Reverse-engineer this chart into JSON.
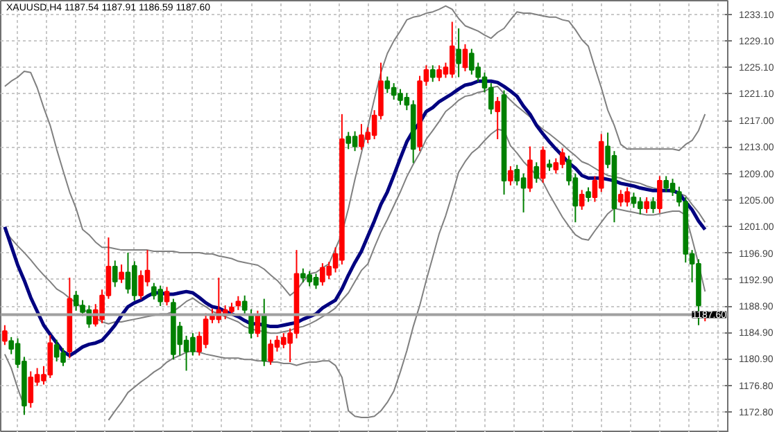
{
  "chart_data": {
    "type": "candlestick",
    "title": "XAUUSD,H4  1187.54 1187.91 1186.59 1187.60",
    "categories": [
      null,
      null,
      null,
      null,
      null,
      null,
      null,
      null,
      null,
      null,
      null,
      null,
      null,
      null,
      null,
      null,
      null,
      null,
      null,
      null,
      null,
      null,
      null,
      null,
      null,
      null,
      null,
      null,
      null,
      null,
      null,
      null,
      null,
      null,
      null,
      null,
      null,
      null,
      null,
      null,
      null,
      null,
      null,
      null,
      null,
      null,
      null,
      null,
      null,
      null,
      null,
      null,
      null,
      null,
      null,
      null,
      null,
      null,
      null,
      null,
      null,
      null,
      null,
      null,
      null,
      null,
      null,
      null,
      null,
      null,
      null,
      null,
      null,
      null,
      null,
      null,
      null,
      null,
      null,
      null,
      null,
      null,
      null,
      null,
      null,
      null,
      null,
      null,
      null,
      null,
      null,
      null,
      null,
      null,
      null,
      null,
      null,
      null,
      null,
      null,
      null,
      null,
      null,
      null,
      null,
      null,
      null,
      null,
      null
    ],
    "ohlc": [
      [
        1183.6,
        1186.0,
        1183.0,
        1185.1
      ],
      [
        1183.6,
        1184.2,
        1181.6,
        1182.4
      ],
      [
        1183.2,
        1184.0,
        1179.5,
        1180.1
      ],
      [
        1180.5,
        1181.2,
        1172.4,
        1173.8
      ],
      [
        1174.3,
        1179.0,
        1173.5,
        1178.1
      ],
      [
        1177.4,
        1179.5,
        1176.8,
        1178.5
      ],
      [
        1177.6,
        1179.8,
        1177.0,
        1178.5
      ],
      [
        1178.5,
        1184.5,
        1178.0,
        1183.3
      ],
      [
        1183.0,
        1183.8,
        1180.5,
        1181.2
      ],
      [
        1181.8,
        1182.5,
        1179.8,
        1180.4
      ],
      [
        1182.0,
        1193.2,
        1181.0,
        1190.0
      ],
      [
        1190.5,
        1191.2,
        1188.2,
        1189.0
      ],
      [
        1189.0,
        1189.8,
        1187.4,
        1188.0
      ],
      [
        1188.3,
        1189.0,
        1185.6,
        1186.2
      ],
      [
        1186.2,
        1189.2,
        1185.8,
        1188.3
      ],
      [
        1186.9,
        1191.4,
        1186.3,
        1190.5
      ],
      [
        1190.5,
        1199.3,
        1190.0,
        1194.9
      ],
      [
        1194.9,
        1195.8,
        1191.8,
        1192.6
      ],
      [
        1193.0,
        1195.2,
        1192.4,
        1194.0
      ],
      [
        1194.0,
        1197.0,
        1190.8,
        1191.5
      ],
      [
        1195.0,
        1195.7,
        1189.7,
        1190.5
      ],
      [
        1190.5,
        1194.3,
        1189.9,
        1193.5
      ],
      [
        1192.6,
        1197.4,
        1191.9,
        1194.3
      ],
      [
        1191.8,
        1192.4,
        1189.9,
        1190.5
      ],
      [
        1191.4,
        1192.0,
        1188.9,
        1189.6
      ],
      [
        1189.6,
        1191.8,
        1189.0,
        1191.1
      ],
      [
        1189.4,
        1190.0,
        1180.8,
        1181.6
      ],
      [
        1185.8,
        1186.5,
        1181.4,
        1183.1
      ],
      [
        1183.7,
        1184.4,
        1179.1,
        1182.0
      ],
      [
        1184.1,
        1184.8,
        1181.4,
        1182.0
      ],
      [
        1182.0,
        1185.0,
        1181.4,
        1184.3
      ],
      [
        1183.1,
        1187.8,
        1182.5,
        1186.9
      ],
      [
        1186.9,
        1188.5,
        1186.3,
        1187.5
      ],
      [
        1186.9,
        1193.2,
        1186.3,
        1188.3
      ],
      [
        1187.5,
        1189.0,
        1186.9,
        1188.3
      ],
      [
        1188.1,
        1189.4,
        1187.5,
        1188.7
      ],
      [
        1189.0,
        1190.4,
        1188.3,
        1189.6
      ],
      [
        1189.6,
        1190.5,
        1187.6,
        1188.3
      ],
      [
        1187.5,
        1188.4,
        1184.0,
        1184.8
      ],
      [
        1184.8,
        1188.2,
        1184.2,
        1187.5
      ],
      [
        1187.5,
        1190.0,
        1179.8,
        1180.6
      ],
      [
        1180.6,
        1183.8,
        1180.0,
        1183.1
      ],
      [
        1182.7,
        1184.4,
        1182.0,
        1183.7
      ],
      [
        1183.1,
        1184.8,
        1182.5,
        1184.1
      ],
      [
        1183.3,
        1185.5,
        1180.4,
        1184.8
      ],
      [
        1184.8,
        1197.4,
        1184.0,
        1193.8
      ],
      [
        1193.8,
        1194.6,
        1192.5,
        1193.2
      ],
      [
        1193.6,
        1194.2,
        1191.9,
        1192.6
      ],
      [
        1193.2,
        1193.8,
        1191.5,
        1192.1
      ],
      [
        1192.6,
        1195.4,
        1192.0,
        1194.7
      ],
      [
        1193.6,
        1195.6,
        1193.0,
        1194.9
      ],
      [
        1194.7,
        1197.8,
        1194.0,
        1196.8
      ],
      [
        1195.9,
        1218.0,
        1195.2,
        1214.2
      ],
      [
        1214.6,
        1215.3,
        1212.7,
        1213.6
      ],
      [
        1214.6,
        1215.4,
        1212.4,
        1213.1
      ],
      [
        1213.1,
        1216.5,
        1212.6,
        1214.8
      ],
      [
        1214.2,
        1216.0,
        1213.6,
        1215.2
      ],
      [
        1214.8,
        1218.6,
        1214.2,
        1217.8
      ],
      [
        1217.8,
        1225.8,
        1217.2,
        1223.0
      ],
      [
        1223.0,
        1223.7,
        1221.2,
        1221.9
      ],
      [
        1222.0,
        1222.7,
        1220.2,
        1220.9
      ],
      [
        1221.1,
        1221.8,
        1219.4,
        1220.1
      ],
      [
        1220.5,
        1221.2,
        1218.6,
        1219.4
      ],
      [
        1219.4,
        1220.1,
        1210.6,
        1212.7
      ],
      [
        1213.1,
        1223.8,
        1212.4,
        1223.0
      ],
      [
        1223.0,
        1225.4,
        1222.3,
        1224.7
      ],
      [
        1224.7,
        1225.4,
        1222.9,
        1223.6
      ],
      [
        1223.6,
        1225.4,
        1223.0,
        1224.7
      ],
      [
        1224.1,
        1225.8,
        1223.5,
        1225.1
      ],
      [
        1224.1,
        1232.0,
        1223.5,
        1228.3
      ],
      [
        1227.8,
        1231.0,
        1223.6,
        1225.7
      ],
      [
        1225.1,
        1228.6,
        1224.5,
        1227.8
      ],
      [
        1227.2,
        1227.9,
        1224.0,
        1224.7
      ],
      [
        1225.1,
        1225.8,
        1222.9,
        1223.6
      ],
      [
        1223.6,
        1224.3,
        1221.3,
        1222.0
      ],
      [
        1222.0,
        1222.7,
        1218.0,
        1218.8
      ],
      [
        1218.4,
        1220.6,
        1214.2,
        1219.9
      ],
      [
        1220.9,
        1221.6,
        1205.8,
        1207.9
      ],
      [
        1207.9,
        1210.1,
        1207.2,
        1209.4
      ],
      [
        1209.6,
        1210.3,
        1207.2,
        1207.9
      ],
      [
        1208.3,
        1209.0,
        1203.1,
        1206.8
      ],
      [
        1206.8,
        1213.1,
        1206.2,
        1211.0
      ],
      [
        1210.0,
        1210.7,
        1207.6,
        1208.3
      ],
      [
        1208.3,
        1213.1,
        1207.6,
        1212.5
      ],
      [
        1210.4,
        1211.1,
        1209.4,
        1210.0
      ],
      [
        1209.6,
        1211.3,
        1209.0,
        1210.6
      ],
      [
        1210.4,
        1212.8,
        1209.8,
        1212.1
      ],
      [
        1211.0,
        1211.7,
        1207.2,
        1207.9
      ],
      [
        1208.3,
        1209.0,
        1201.6,
        1204.1
      ],
      [
        1204.1,
        1206.5,
        1203.5,
        1205.8
      ],
      [
        1206.2,
        1206.9,
        1204.7,
        1205.4
      ],
      [
        1205.4,
        1208.6,
        1204.7,
        1207.9
      ],
      [
        1206.8,
        1215.0,
        1206.2,
        1213.8
      ],
      [
        1213.1,
        1215.2,
        1209.8,
        1210.4
      ],
      [
        1211.7,
        1212.4,
        1201.6,
        1203.7
      ],
      [
        1204.7,
        1206.5,
        1204.0,
        1205.8
      ],
      [
        1204.7,
        1206.9,
        1204.0,
        1206.2
      ],
      [
        1205.4,
        1206.1,
        1203.8,
        1204.5
      ],
      [
        1204.7,
        1205.4,
        1202.8,
        1203.7
      ],
      [
        1203.7,
        1205.4,
        1203.0,
        1204.7
      ],
      [
        1204.7,
        1205.4,
        1203.0,
        1203.7
      ],
      [
        1203.7,
        1208.6,
        1203.0,
        1207.9
      ],
      [
        1207.9,
        1208.6,
        1206.2,
        1206.8
      ],
      [
        1207.5,
        1208.2,
        1205.6,
        1206.2
      ],
      [
        1206.2,
        1207.0,
        1204.0,
        1204.7
      ],
      [
        1204.7,
        1205.4,
        1195.5,
        1196.8
      ],
      [
        1196.8,
        1197.4,
        1192.5,
        1195.3
      ],
      [
        1195.3,
        1196.0,
        1186.0,
        1189.0
      ],
      [
        1187.54,
        1187.91,
        1186.59,
        1187.6
      ]
    ],
    "colors": [
      "#ff0000",
      "#008000",
      "#008000",
      "#008000",
      "#ff0000",
      "#ff0000",
      "#ff0000",
      "#ff0000",
      "#008000",
      "#008000",
      "#ff0000",
      "#008000",
      "#008000",
      "#008000",
      "#ff0000",
      "#ff0000",
      "#ff0000",
      "#008000",
      "#ff0000",
      "#008000",
      "#008000",
      "#ff0000",
      "#ff0000",
      "#008000",
      "#008000",
      "#ff0000",
      "#008000",
      "#008000",
      "#008000",
      "#008000",
      "#ff0000",
      "#ff0000",
      "#ff0000",
      "#ff0000",
      "#ff0000",
      "#ff0000",
      "#ff0000",
      "#008000",
      "#008000",
      "#ff0000",
      "#008000",
      "#ff0000",
      "#ff0000",
      "#ff0000",
      "#ff0000",
      "#ff0000",
      "#008000",
      "#008000",
      "#008000",
      "#ff0000",
      "#ff0000",
      "#ff0000",
      "#ff0000",
      "#008000",
      "#008000",
      "#ff0000",
      "#ff0000",
      "#ff0000",
      "#ff0000",
      "#008000",
      "#008000",
      "#008000",
      "#008000",
      "#008000",
      "#ff0000",
      "#ff0000",
      "#008000",
      "#ff0000",
      "#ff0000",
      "#ff0000",
      "#008000",
      "#ff0000",
      "#008000",
      "#008000",
      "#008000",
      "#008000",
      "#ff0000",
      "#008000",
      "#ff0000",
      "#008000",
      "#008000",
      "#ff0000",
      "#008000",
      "#ff0000",
      "#008000",
      "#ff0000",
      "#ff0000",
      "#008000",
      "#008000",
      "#ff0000",
      "#008000",
      "#ff0000",
      "#ff0000",
      "#008000",
      "#008000",
      "#ff0000",
      "#ff0000",
      "#008000",
      "#008000",
      "#ff0000",
      "#008000",
      "#ff0000",
      "#008000",
      "#008000",
      "#008000",
      "#008000",
      "#008000",
      "#008000",
      "#ff0000"
    ],
    "series": [
      {
        "type": "line",
        "color": "#808080",
        "values": [
          1222.2,
          1223.0,
          1223.6,
          1224.5,
          1224.3,
          1222.0,
          1219.0,
          1216.3,
          1212.7,
          1209.4,
          1206.2,
          1203.7,
          1200.5,
          1199.7,
          1198.6,
          1197.8,
          1197.8,
          1197.6,
          1197.4,
          1197.4,
          1197.4,
          1197.4,
          1197.4,
          1197.2,
          1197.2,
          1197.2,
          1197.2,
          1197.0,
          1197.0,
          1197.0,
          1197.0,
          1196.8,
          1196.8,
          1196.5,
          1196.3,
          1196.1,
          1195.7,
          1195.5,
          1195.3,
          1195.1,
          1194.5,
          1193.6,
          1192.8,
          1191.7,
          1190.5,
          1191.3,
          1192.6,
          1193.8,
          1194.0,
          1194.7,
          1195.3,
          1197.6,
          1199.9,
          1203.7,
          1208.1,
          1212.1,
          1216.1,
          1220.3,
          1224.3,
          1227.2,
          1229.1,
          1230.6,
          1232.3,
          1232.7,
          1232.9,
          1233.3,
          1233.5,
          1233.9,
          1234.4,
          1233.9,
          1232.5,
          1231.4,
          1231.0,
          1230.6,
          1230.0,
          1229.5,
          1230.4,
          1231.0,
          1232.3,
          1233.5,
          1233.3,
          1233.3,
          1233.1,
          1232.9,
          1232.7,
          1232.7,
          1232.3,
          1232.1,
          1230.8,
          1229.3,
          1228.3,
          1225.1,
          1222.0,
          1218.6,
          1216.3,
          1213.4,
          1212.7,
          1212.7,
          1212.7,
          1212.7,
          1212.7,
          1212.7,
          1212.7,
          1212.7,
          1212.5,
          1213.4,
          1214.0,
          1215.5,
          1218.0
        ]
      },
      {
        "type": "line",
        "color": "#808080",
        "values": [
          1200.3,
          1199.1,
          1198.0,
          1197.0,
          1195.9,
          1194.7,
          1193.6,
          1192.6,
          1191.5,
          1190.9,
          1190.1,
          1189.4,
          1188.6,
          1187.7,
          1187.1,
          1186.5,
          1186.2,
          1186.5,
          1186.5,
          1186.7,
          1186.9,
          1187.1,
          1187.3,
          1187.5,
          1187.7,
          1187.7,
          1188.1,
          1188.8,
          1189.6,
          1190.1,
          1189.4,
          1188.8,
          1188.1,
          1187.7,
          1187.3,
          1186.9,
          1186.5,
          1185.8,
          1185.4,
          1185.2,
          1185.0,
          1184.8,
          1184.8,
          1185.0,
          1185.2,
          1185.6,
          1185.8,
          1186.2,
          1186.7,
          1187.3,
          1187.9,
          1188.6,
          1189.8,
          1190.9,
          1192.6,
          1194.3,
          1195.3,
          1197.8,
          1200.1,
          1202.0,
          1204.1,
          1206.2,
          1208.5,
          1210.4,
          1212.1,
          1214.2,
          1215.5,
          1216.9,
          1218.4,
          1219.2,
          1220.1,
          1220.7,
          1220.9,
          1221.3,
          1221.5,
          1222.0,
          1222.2,
          1221.1,
          1220.1,
          1219.2,
          1218.4,
          1217.6,
          1216.5,
          1215.7,
          1215.0,
          1214.2,
          1213.4,
          1212.5,
          1211.7,
          1210.8,
          1210.4,
          1209.8,
          1209.2,
          1208.7,
          1208.5,
          1208.3,
          1207.9,
          1207.7,
          1207.5,
          1207.1,
          1206.8,
          1206.6,
          1206.4,
          1206.2,
          1206.0,
          1205.6,
          1204.3,
          1203.1,
          1201.6
        ]
      },
      {
        "type": "line",
        "color": "#808080",
        "values": [
          1181.6,
          1179.5,
          1176.4,
          1173.7,
          null,
          null,
          null,
          null,
          null,
          null,
          null,
          null,
          null,
          null,
          null,
          null,
          1171.6,
          1173.0,
          1174.3,
          1175.8,
          1176.6,
          1177.4,
          1178.1,
          1178.9,
          1179.5,
          1180.4,
          1181.0,
          1181.4,
          1181.9,
          1182.1,
          1181.9,
          1181.6,
          1181.4,
          1181.2,
          1181.0,
          1181.0,
          1181.0,
          1180.8,
          1180.8,
          1180.6,
          1180.6,
          1180.4,
          1180.4,
          1180.2,
          1180.2,
          1179.9,
          1180.2,
          1180.4,
          1180.4,
          1180.6,
          1180.6,
          1179.9,
          1178.1,
          1173.0,
          1172.2,
          1172.0,
          1172.0,
          1172.2,
          1173.0,
          1174.3,
          1176.0,
          1178.9,
          1182.1,
          1185.8,
          1189.0,
          1192.8,
          1196.3,
          1199.9,
          1202.6,
          1205.8,
          1209.2,
          1210.8,
          1212.1,
          1212.9,
          1214.0,
          1215.0,
          1215.7,
          1215.5,
          1213.2,
          1212.1,
          1210.8,
          1209.8,
          1208.7,
          1207.7,
          1205.8,
          1204.1,
          1202.4,
          1201.0,
          1199.7,
          1199.1,
          1198.9,
          1200.3,
          1201.6,
          1202.9,
          1203.7,
          1203.5,
          1203.3,
          1203.1,
          1202.9,
          1202.7,
          1202.7,
          1202.9,
          1203.1,
          1203.3,
          1203.3,
          1202.7,
          1199.1,
          1195.3,
          1191.1
        ]
      },
      {
        "type": "line",
        "color": "#000080",
        "values": [
          1200.9,
          1198.0,
          1195.1,
          1192.8,
          1190.2,
          1188.1,
          1186.0,
          1184.6,
          1183.3,
          1182.0,
          1181.4,
          1182.0,
          1182.7,
          1183.1,
          1183.3,
          1183.7,
          1184.8,
          1186.0,
          1187.5,
          1188.8,
          1189.4,
          1189.8,
          1190.4,
          1190.9,
          1190.9,
          1190.7,
          1190.7,
          1190.9,
          1191.1,
          1190.9,
          1190.2,
          1189.4,
          1188.8,
          1188.6,
          1188.1,
          1187.7,
          1187.3,
          1186.7,
          1186.2,
          1186.2,
          1186.0,
          1185.8,
          1185.8,
          1186.0,
          1186.2,
          1186.4,
          1186.9,
          1187.3,
          1187.7,
          1188.6,
          1189.2,
          1189.8,
          1191.5,
          1193.6,
          1195.5,
          1197.2,
          1199.5,
          1201.8,
          1204.3,
          1206.2,
          1208.7,
          1211.3,
          1213.8,
          1215.5,
          1216.7,
          1218.4,
          1219.0,
          1219.9,
          1220.5,
          1221.1,
          1221.8,
          1222.4,
          1222.6,
          1223.0,
          1223.0,
          1223.0,
          1222.8,
          1222.2,
          1221.5,
          1220.7,
          1219.2,
          1218.0,
          1216.3,
          1215.0,
          1213.8,
          1212.7,
          1211.7,
          1210.6,
          1209.8,
          1208.7,
          1208.3,
          1208.3,
          1208.3,
          1208.1,
          1207.9,
          1207.5,
          1207.3,
          1207.1,
          1206.8,
          1206.6,
          1206.4,
          1206.4,
          1206.4,
          1206.4,
          1206.0,
          1204.7,
          1203.5,
          1201.8,
          1200.5
        ]
      }
    ],
    "ylim": [
      1169.7,
      1235.2
    ],
    "yticks": [
      {
        "value": 1233.1,
        "label": "1233.10"
      },
      {
        "value": 1229.1,
        "label": "1229.10"
      },
      {
        "value": 1225.1,
        "label": "1225.10"
      },
      {
        "value": 1221.1,
        "label": "1221.10"
      },
      {
        "value": 1217.0,
        "label": "1217.00"
      },
      {
        "value": 1213.0,
        "label": "1213.00"
      },
      {
        "value": 1209.0,
        "label": "1209.00"
      },
      {
        "value": 1205.0,
        "label": "1205.00"
      },
      {
        "value": 1201.0,
        "label": "1201.00"
      },
      {
        "value": 1196.9,
        "label": "1196.90"
      },
      {
        "value": 1192.9,
        "label": "1192.90"
      },
      {
        "value": 1188.9,
        "label": "1188.90"
      },
      {
        "value": 1184.9,
        "label": "1184.90"
      },
      {
        "value": 1180.9,
        "label": "1180.90"
      },
      {
        "value": 1176.8,
        "label": "1176.80"
      },
      {
        "value": 1172.8,
        "label": "1172.80"
      }
    ],
    "ref_lines": [
      {
        "axis": "y",
        "value": 1187.6,
        "label": "1187.60",
        "color": "#a0a0a0"
      }
    ],
    "grid": true,
    "tick_labels": "y"
  }
}
